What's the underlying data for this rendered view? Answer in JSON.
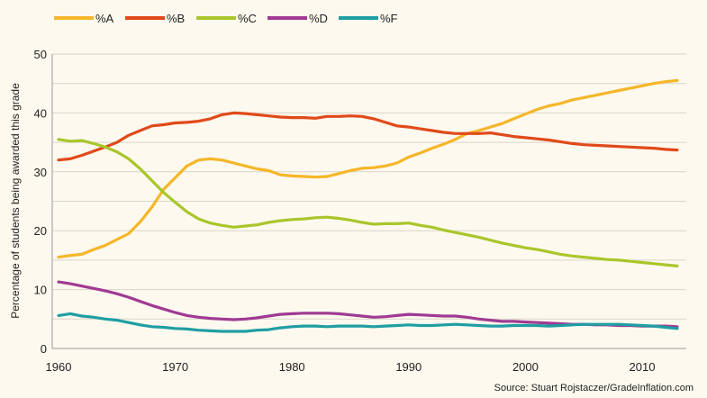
{
  "chart_data": {
    "type": "line",
    "title": "",
    "xlabel": "",
    "ylabel": "Percentage of students being awarded this grade",
    "source": "Source: Stuart Rojstaczer/GradeInflation.com",
    "xlim": [
      1960,
      2013
    ],
    "ylim": [
      0,
      50
    ],
    "x_ticks": [
      "1960",
      "1970",
      "1980",
      "1990",
      "2000",
      "2010"
    ],
    "y_ticks": [
      "0",
      "10",
      "20",
      "30",
      "40",
      "50"
    ],
    "grid": "horizontal every 5",
    "legend_position": "top",
    "x_start": 1960,
    "series": [
      {
        "name": "%A",
        "color": "#f5b629",
        "values": [
          15.5,
          15.8,
          16,
          16.8,
          17.5,
          18.5,
          19.5,
          21.5,
          24,
          27,
          29,
          31,
          32,
          32.2,
          32,
          31.5,
          31,
          30.5,
          30.2,
          29.5,
          29.3,
          29.2,
          29.1,
          29.2,
          29.7,
          30.2,
          30.6,
          30.7,
          31,
          31.5,
          32.5,
          33.2,
          34,
          34.7,
          35.5,
          36.5,
          37,
          37.6,
          38.2,
          39,
          39.8,
          40.6,
          41.2,
          41.6,
          42.2,
          42.6,
          43,
          43.4,
          43.8,
          44.2,
          44.6,
          45,
          45.3,
          45.5
        ]
      },
      {
        "name": "%B",
        "color": "#e04a1a",
        "values": [
          32,
          32.2,
          32.8,
          33.5,
          34.2,
          35,
          36.2,
          37,
          37.8,
          38,
          38.3,
          38.4,
          38.6,
          39,
          39.7,
          40,
          39.9,
          39.7,
          39.5,
          39.3,
          39.2,
          39.2,
          39.1,
          39.4,
          39.4,
          39.5,
          39.4,
          39,
          38.4,
          37.8,
          37.6,
          37.3,
          37,
          36.7,
          36.5,
          36.5,
          36.5,
          36.6,
          36.3,
          36,
          35.8,
          35.6,
          35.4,
          35.1,
          34.8,
          34.6,
          34.5,
          34.4,
          34.3,
          34.2,
          34.1,
          34,
          33.8,
          33.7
        ]
      },
      {
        "name": "%C",
        "color": "#a9c62b",
        "values": [
          35.5,
          35.2,
          35.3,
          34.8,
          34.2,
          33.4,
          32.2,
          30.5,
          28.5,
          26.5,
          24.8,
          23.2,
          22,
          21.3,
          20.9,
          20.6,
          20.8,
          21,
          21.4,
          21.7,
          21.9,
          22,
          22.2,
          22.3,
          22.1,
          21.8,
          21.4,
          21.1,
          21.2,
          21.2,
          21.3,
          20.9,
          20.6,
          20.1,
          19.7,
          19.3,
          18.9,
          18.4,
          17.9,
          17.5,
          17.1,
          16.8,
          16.4,
          16,
          15.7,
          15.5,
          15.3,
          15.1,
          15,
          14.8,
          14.6,
          14.4,
          14.2,
          14
        ]
      },
      {
        "name": "%D",
        "color": "#a03a93",
        "values": [
          11.3,
          11,
          10.6,
          10.2,
          9.8,
          9.3,
          8.7,
          8,
          7.3,
          6.7,
          6.1,
          5.6,
          5.3,
          5.1,
          5,
          4.9,
          5,
          5.2,
          5.5,
          5.8,
          5.9,
          6,
          6,
          6,
          5.9,
          5.7,
          5.5,
          5.3,
          5.4,
          5.6,
          5.8,
          5.7,
          5.6,
          5.5,
          5.5,
          5.3,
          5,
          4.8,
          4.6,
          4.6,
          4.5,
          4.4,
          4.3,
          4.2,
          4.1,
          4.1,
          4,
          4,
          3.9,
          3.9,
          3.8,
          3.8,
          3.8,
          3.7
        ]
      },
      {
        "name": "%F",
        "color": "#1f9ea3",
        "values": [
          5.6,
          5.9,
          5.5,
          5.3,
          5,
          4.8,
          4.4,
          4,
          3.7,
          3.6,
          3.4,
          3.3,
          3.1,
          3,
          2.9,
          2.9,
          2.9,
          3.1,
          3.2,
          3.5,
          3.7,
          3.8,
          3.8,
          3.7,
          3.8,
          3.8,
          3.8,
          3.7,
          3.8,
          3.9,
          4,
          3.9,
          3.9,
          4,
          4.1,
          4,
          3.9,
          3.8,
          3.8,
          3.9,
          3.9,
          3.9,
          3.8,
          3.9,
          4,
          4.1,
          4.1,
          4.1,
          4.1,
          4,
          3.9,
          3.8,
          3.6,
          3.4
        ]
      }
    ]
  }
}
